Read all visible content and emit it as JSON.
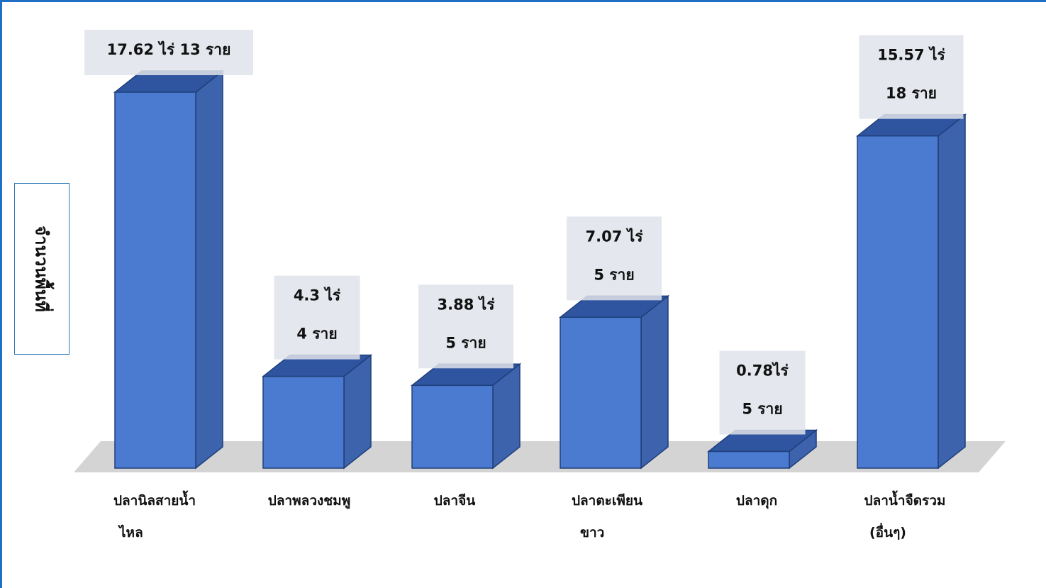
{
  "chart_data": {
    "type": "bar",
    "style": "3d-column",
    "ylabel": "จำนวนพื้นที่",
    "categories": [
      [
        "ปลานิลสายน้ำ",
        "ไหล"
      ],
      [
        "ปลาพลวงชมพู"
      ],
      [
        "ปลาจีน"
      ],
      [
        "ปลาตะเพียน",
        "ขาว"
      ],
      [
        "ปลาดุก"
      ],
      [
        "ปลาน้ำจืดรวม",
        "(อื่นๆ)"
      ]
    ],
    "values": [
      17.62,
      4.3,
      3.88,
      7.07,
      0.78,
      15.57
    ],
    "data_labels": [
      [
        "17.62 ไร่ 13 ราย"
      ],
      [
        "4.3 ไร่",
        "4 ราย"
      ],
      [
        "3.88 ไร่",
        "5 ราย"
      ],
      [
        "7.07 ไร่",
        "5 ราย"
      ],
      [
        "0.78ไร่",
        "5 ราย"
      ],
      [
        "15.57 ไร่",
        "18 ราย"
      ]
    ],
    "ylim": [
      0,
      17.62
    ],
    "grid": false,
    "legend": "none",
    "colors": {
      "bar_front": "#4a7bd1",
      "bar_side": "#3d63ad",
      "bar_top": "#2f55a0",
      "bar_edge": "#1f3f7a",
      "floor": "#d4d4d4",
      "label_bg": "#dfe3ea",
      "frame": "#1f6fc5"
    }
  }
}
